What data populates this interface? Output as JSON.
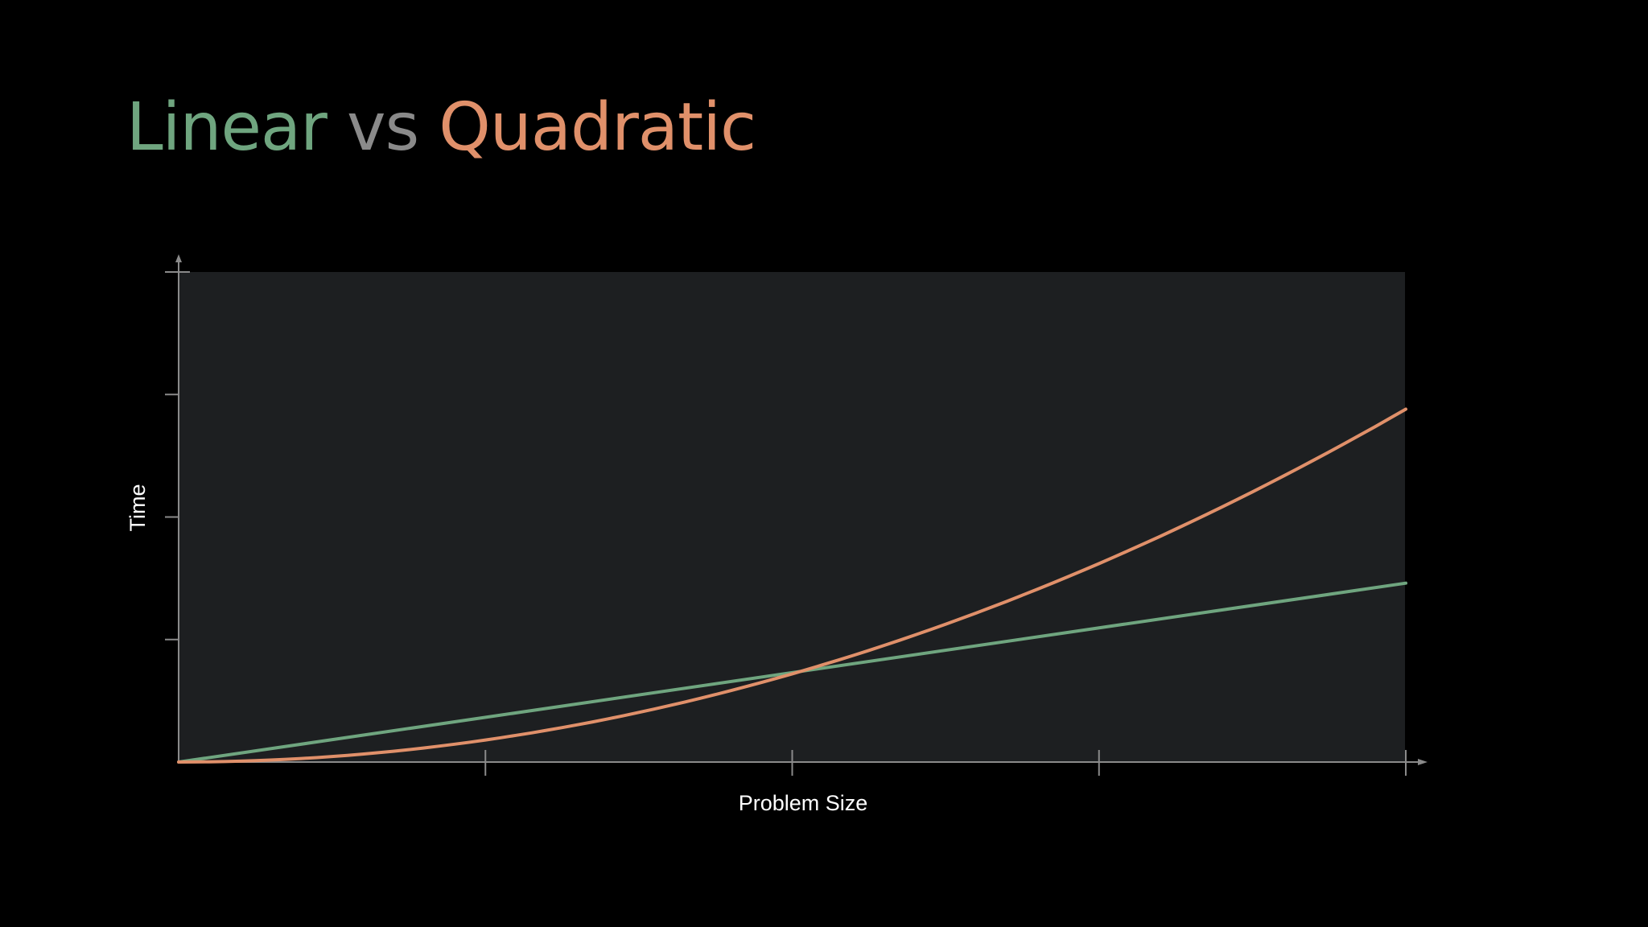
{
  "title": {
    "part1": "Linear",
    "part2": "vs",
    "part3": "Quadratic",
    "colors": {
      "linear": "#6fa57f",
      "vs": "#8a8a8a",
      "quadratic": "#e0906a"
    }
  },
  "chart_data": {
    "type": "line",
    "xlabel": "Problem Size",
    "ylabel": "Time",
    "xlim": [
      0,
      4
    ],
    "ylim": [
      0,
      4
    ],
    "x_ticks": [
      0,
      1,
      2,
      3,
      4
    ],
    "y_ticks": [
      0,
      1,
      2,
      3,
      4
    ],
    "tick_labels_shown": false,
    "grid": false,
    "legend": "none",
    "plot_background": "#1d1f21",
    "axis_color": "#8a8a8a",
    "series": [
      {
        "key": "linear",
        "color": "#6fa57f",
        "x": [
          0,
          4
        ],
        "y": [
          0,
          1.46
        ]
      },
      {
        "key": "quadratic",
        "color": "#e0906a",
        "x": [
          0,
          0.5,
          1,
          1.5,
          2,
          2.5,
          3,
          3.5,
          4
        ],
        "y": [
          0,
          0.045,
          0.18,
          0.405,
          0.72,
          1.125,
          1.62,
          2.205,
          2.88
        ]
      }
    ]
  }
}
